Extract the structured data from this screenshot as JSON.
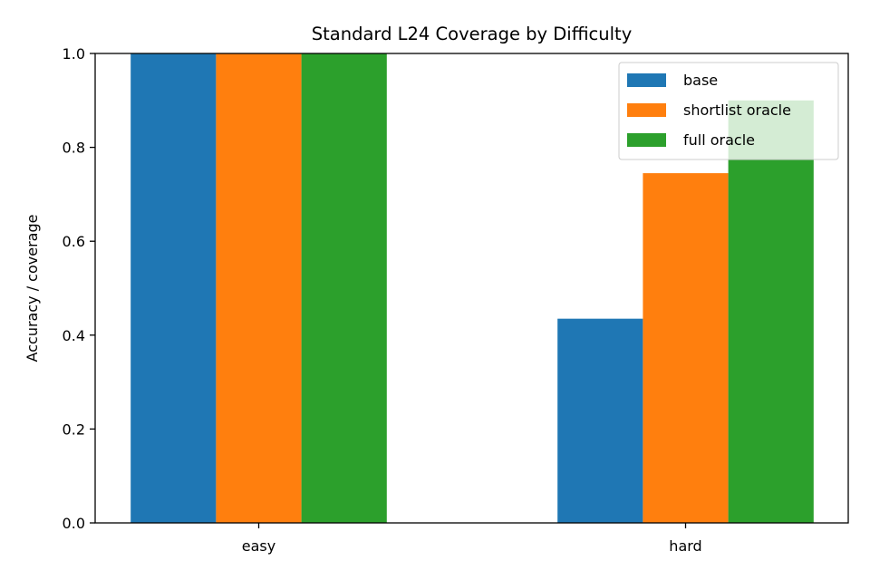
{
  "chart_data": {
    "type": "bar",
    "title": "Standard L24 Coverage by Difficulty",
    "xlabel": "",
    "ylabel": "Accuracy / coverage",
    "categories": [
      "easy",
      "hard"
    ],
    "ylim": [
      0,
      1.0
    ],
    "yticks": [
      "0.0",
      "0.2",
      "0.4",
      "0.6",
      "0.8",
      "1.0"
    ],
    "grid": false,
    "legend_position": "top-right",
    "series": [
      {
        "name": "base",
        "color": "#1f77b4",
        "values": [
          1.0,
          0.435
        ]
      },
      {
        "name": "shortlist oracle",
        "color": "#ff7f0e",
        "values": [
          1.0,
          0.745
        ]
      },
      {
        "name": "full oracle",
        "color": "#2ca02c",
        "values": [
          1.0,
          0.9
        ]
      }
    ]
  }
}
